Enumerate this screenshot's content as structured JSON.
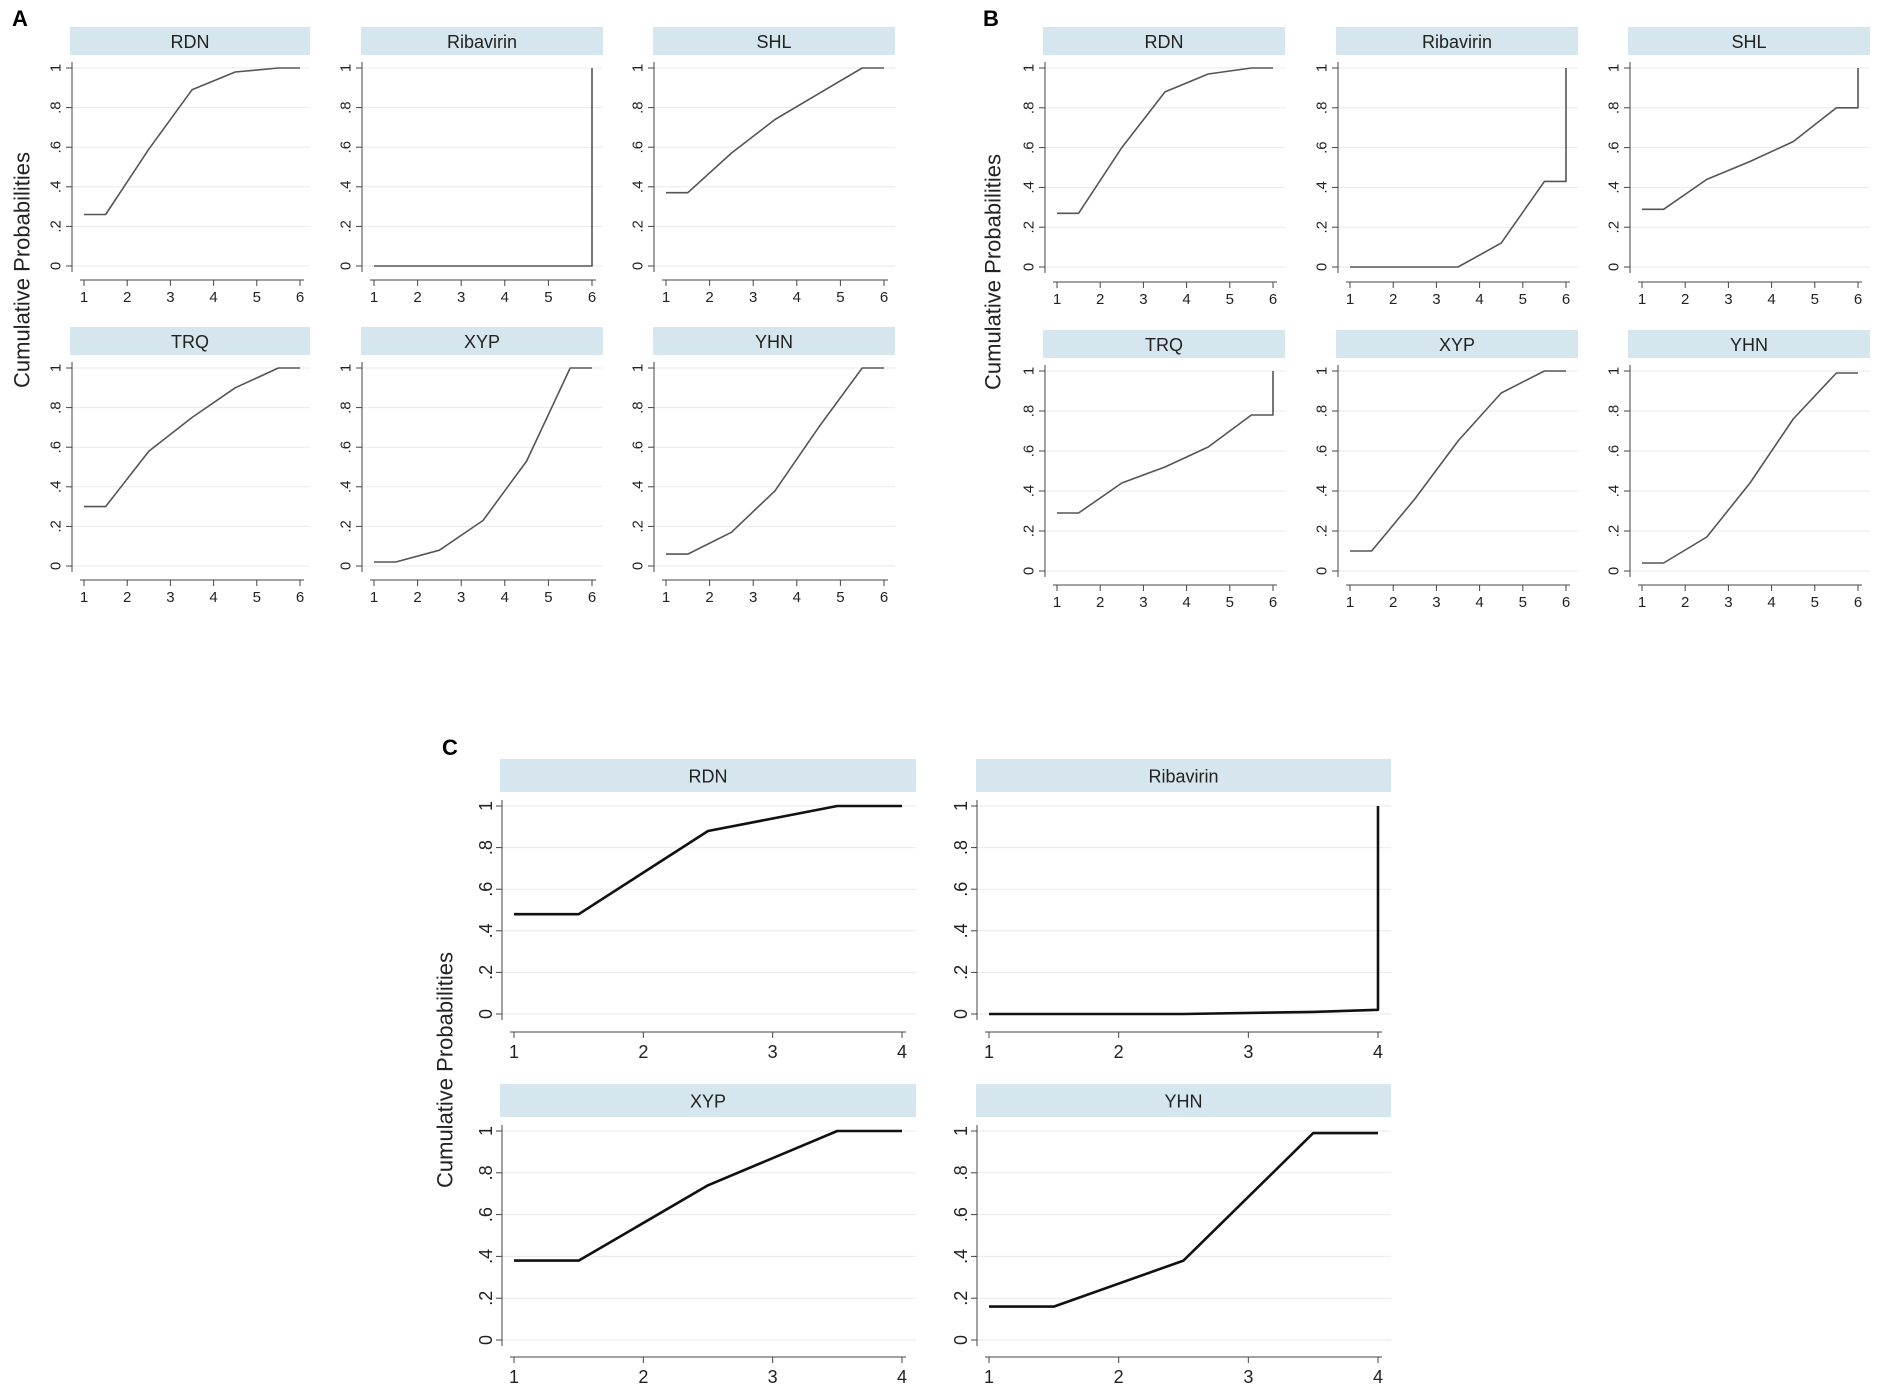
{
  "figure": {
    "panels": [
      {
        "label": "A",
        "ylabel": "Cumulative Probabilities",
        "chart_data": {
          "type": "line",
          "xlabel": "",
          "ylabel": "Cumulative Probabilities",
          "xlim": [
            1,
            6
          ],
          "ylim": [
            0,
            1
          ],
          "x_ticks": [
            "1",
            "2",
            "3",
            "4",
            "5",
            "6"
          ],
          "y_ticks": [
            "0",
            ".2",
            ".4",
            ".6",
            ".8",
            "1"
          ],
          "facets": [
            {
              "title": "RDN",
              "x": [
                1,
                1.5,
                2.5,
                3.5,
                4.5,
                5.5,
                6
              ],
              "values": [
                0.26,
                0.26,
                0.59,
                0.89,
                0.98,
                1.0,
                1.0
              ]
            },
            {
              "title": "Ribavirin",
              "x": [
                1,
                1.5,
                2.5,
                3.5,
                4.5,
                5.5,
                6,
                6
              ],
              "values": [
                0,
                0,
                0,
                0,
                0,
                0,
                0,
                1.0
              ]
            },
            {
              "title": "SHL",
              "x": [
                1,
                1.5,
                2.5,
                3.5,
                4.5,
                5.5,
                6
              ],
              "values": [
                0.37,
                0.37,
                0.57,
                0.74,
                0.87,
                1.0,
                1.0
              ]
            },
            {
              "title": "TRQ",
              "x": [
                1,
                1.5,
                2.5,
                3.5,
                4.5,
                5.5,
                6
              ],
              "values": [
                0.3,
                0.3,
                0.58,
                0.75,
                0.9,
                1.0,
                1.0
              ]
            },
            {
              "title": "XYP",
              "x": [
                1,
                1.5,
                2.5,
                3.5,
                4.5,
                5.5,
                6
              ],
              "values": [
                0.02,
                0.02,
                0.08,
                0.23,
                0.53,
                1.0,
                1.0
              ]
            },
            {
              "title": "YHN",
              "x": [
                1,
                1.5,
                2.5,
                3.5,
                4.5,
                5.5,
                6
              ],
              "values": [
                0.06,
                0.06,
                0.17,
                0.38,
                0.7,
                1.0,
                1.0
              ]
            }
          ]
        }
      },
      {
        "label": "B",
        "ylabel": "Cumulative Probabilities",
        "chart_data": {
          "type": "line",
          "xlabel": "",
          "ylabel": "Cumulative Probabilities",
          "xlim": [
            1,
            6
          ],
          "ylim": [
            0,
            1
          ],
          "x_ticks": [
            "1",
            "2",
            "3",
            "4",
            "5",
            "6"
          ],
          "y_ticks": [
            "0",
            ".2",
            ".4",
            ".6",
            ".8",
            "1"
          ],
          "facets": [
            {
              "title": "RDN",
              "x": [
                1,
                1.5,
                2.5,
                3.5,
                4.5,
                5.5,
                6
              ],
              "values": [
                0.27,
                0.27,
                0.6,
                0.88,
                0.97,
                1.0,
                1.0
              ]
            },
            {
              "title": "Ribavirin",
              "x": [
                1,
                1.5,
                2.5,
                3.5,
                4.5,
                5.5,
                6,
                6
              ],
              "values": [
                0,
                0,
                0,
                0,
                0.12,
                0.43,
                0.43,
                1.0
              ]
            },
            {
              "title": "SHL",
              "x": [
                1,
                1.5,
                2.5,
                3.5,
                4.5,
                5.5,
                6,
                6
              ],
              "values": [
                0.29,
                0.29,
                0.44,
                0.53,
                0.63,
                0.8,
                0.8,
                1.0
              ]
            },
            {
              "title": "TRQ",
              "x": [
                1,
                1.5,
                2.5,
                3.5,
                4.5,
                5.5,
                6,
                6
              ],
              "values": [
                0.29,
                0.29,
                0.44,
                0.52,
                0.62,
                0.78,
                0.78,
                1.0
              ]
            },
            {
              "title": "XYP",
              "x": [
                1,
                1.5,
                2.5,
                3.5,
                4.5,
                5.5,
                6
              ],
              "values": [
                0.1,
                0.1,
                0.36,
                0.65,
                0.89,
                1.0,
                1.0
              ]
            },
            {
              "title": "YHN",
              "x": [
                1,
                1.5,
                2.5,
                3.5,
                4.5,
                5.5,
                6
              ],
              "values": [
                0.04,
                0.04,
                0.17,
                0.44,
                0.76,
                0.99,
                0.99
              ]
            }
          ]
        }
      },
      {
        "label": "C",
        "ylabel": "Cumulative Probabilities",
        "chart_data": {
          "type": "line",
          "xlabel": "",
          "ylabel": "Cumulative Probabilities",
          "xlim": [
            1,
            4
          ],
          "ylim": [
            0,
            1
          ],
          "x_ticks": [
            "1",
            "2",
            "3",
            "4"
          ],
          "y_ticks": [
            "0",
            ".2",
            ".4",
            ".6",
            ".8",
            "1"
          ],
          "facets": [
            {
              "title": "RDN",
              "x": [
                1,
                1.5,
                2.5,
                3.5,
                4
              ],
              "values": [
                0.48,
                0.48,
                0.88,
                1.0,
                1.0
              ]
            },
            {
              "title": "Ribavirin",
              "x": [
                1,
                1.5,
                2.5,
                3.5,
                4,
                4
              ],
              "values": [
                0,
                0,
                0,
                0.01,
                0.02,
                1.0
              ]
            },
            {
              "title": "XYP",
              "x": [
                1,
                1.5,
                2.5,
                3.5,
                4
              ],
              "values": [
                0.38,
                0.38,
                0.74,
                1.0,
                1.0
              ]
            },
            {
              "title": "YHN",
              "x": [
                1,
                1.5,
                2.5,
                3.5,
                4
              ],
              "values": [
                0.16,
                0.16,
                0.38,
                0.99,
                0.99
              ]
            }
          ]
        }
      }
    ]
  }
}
